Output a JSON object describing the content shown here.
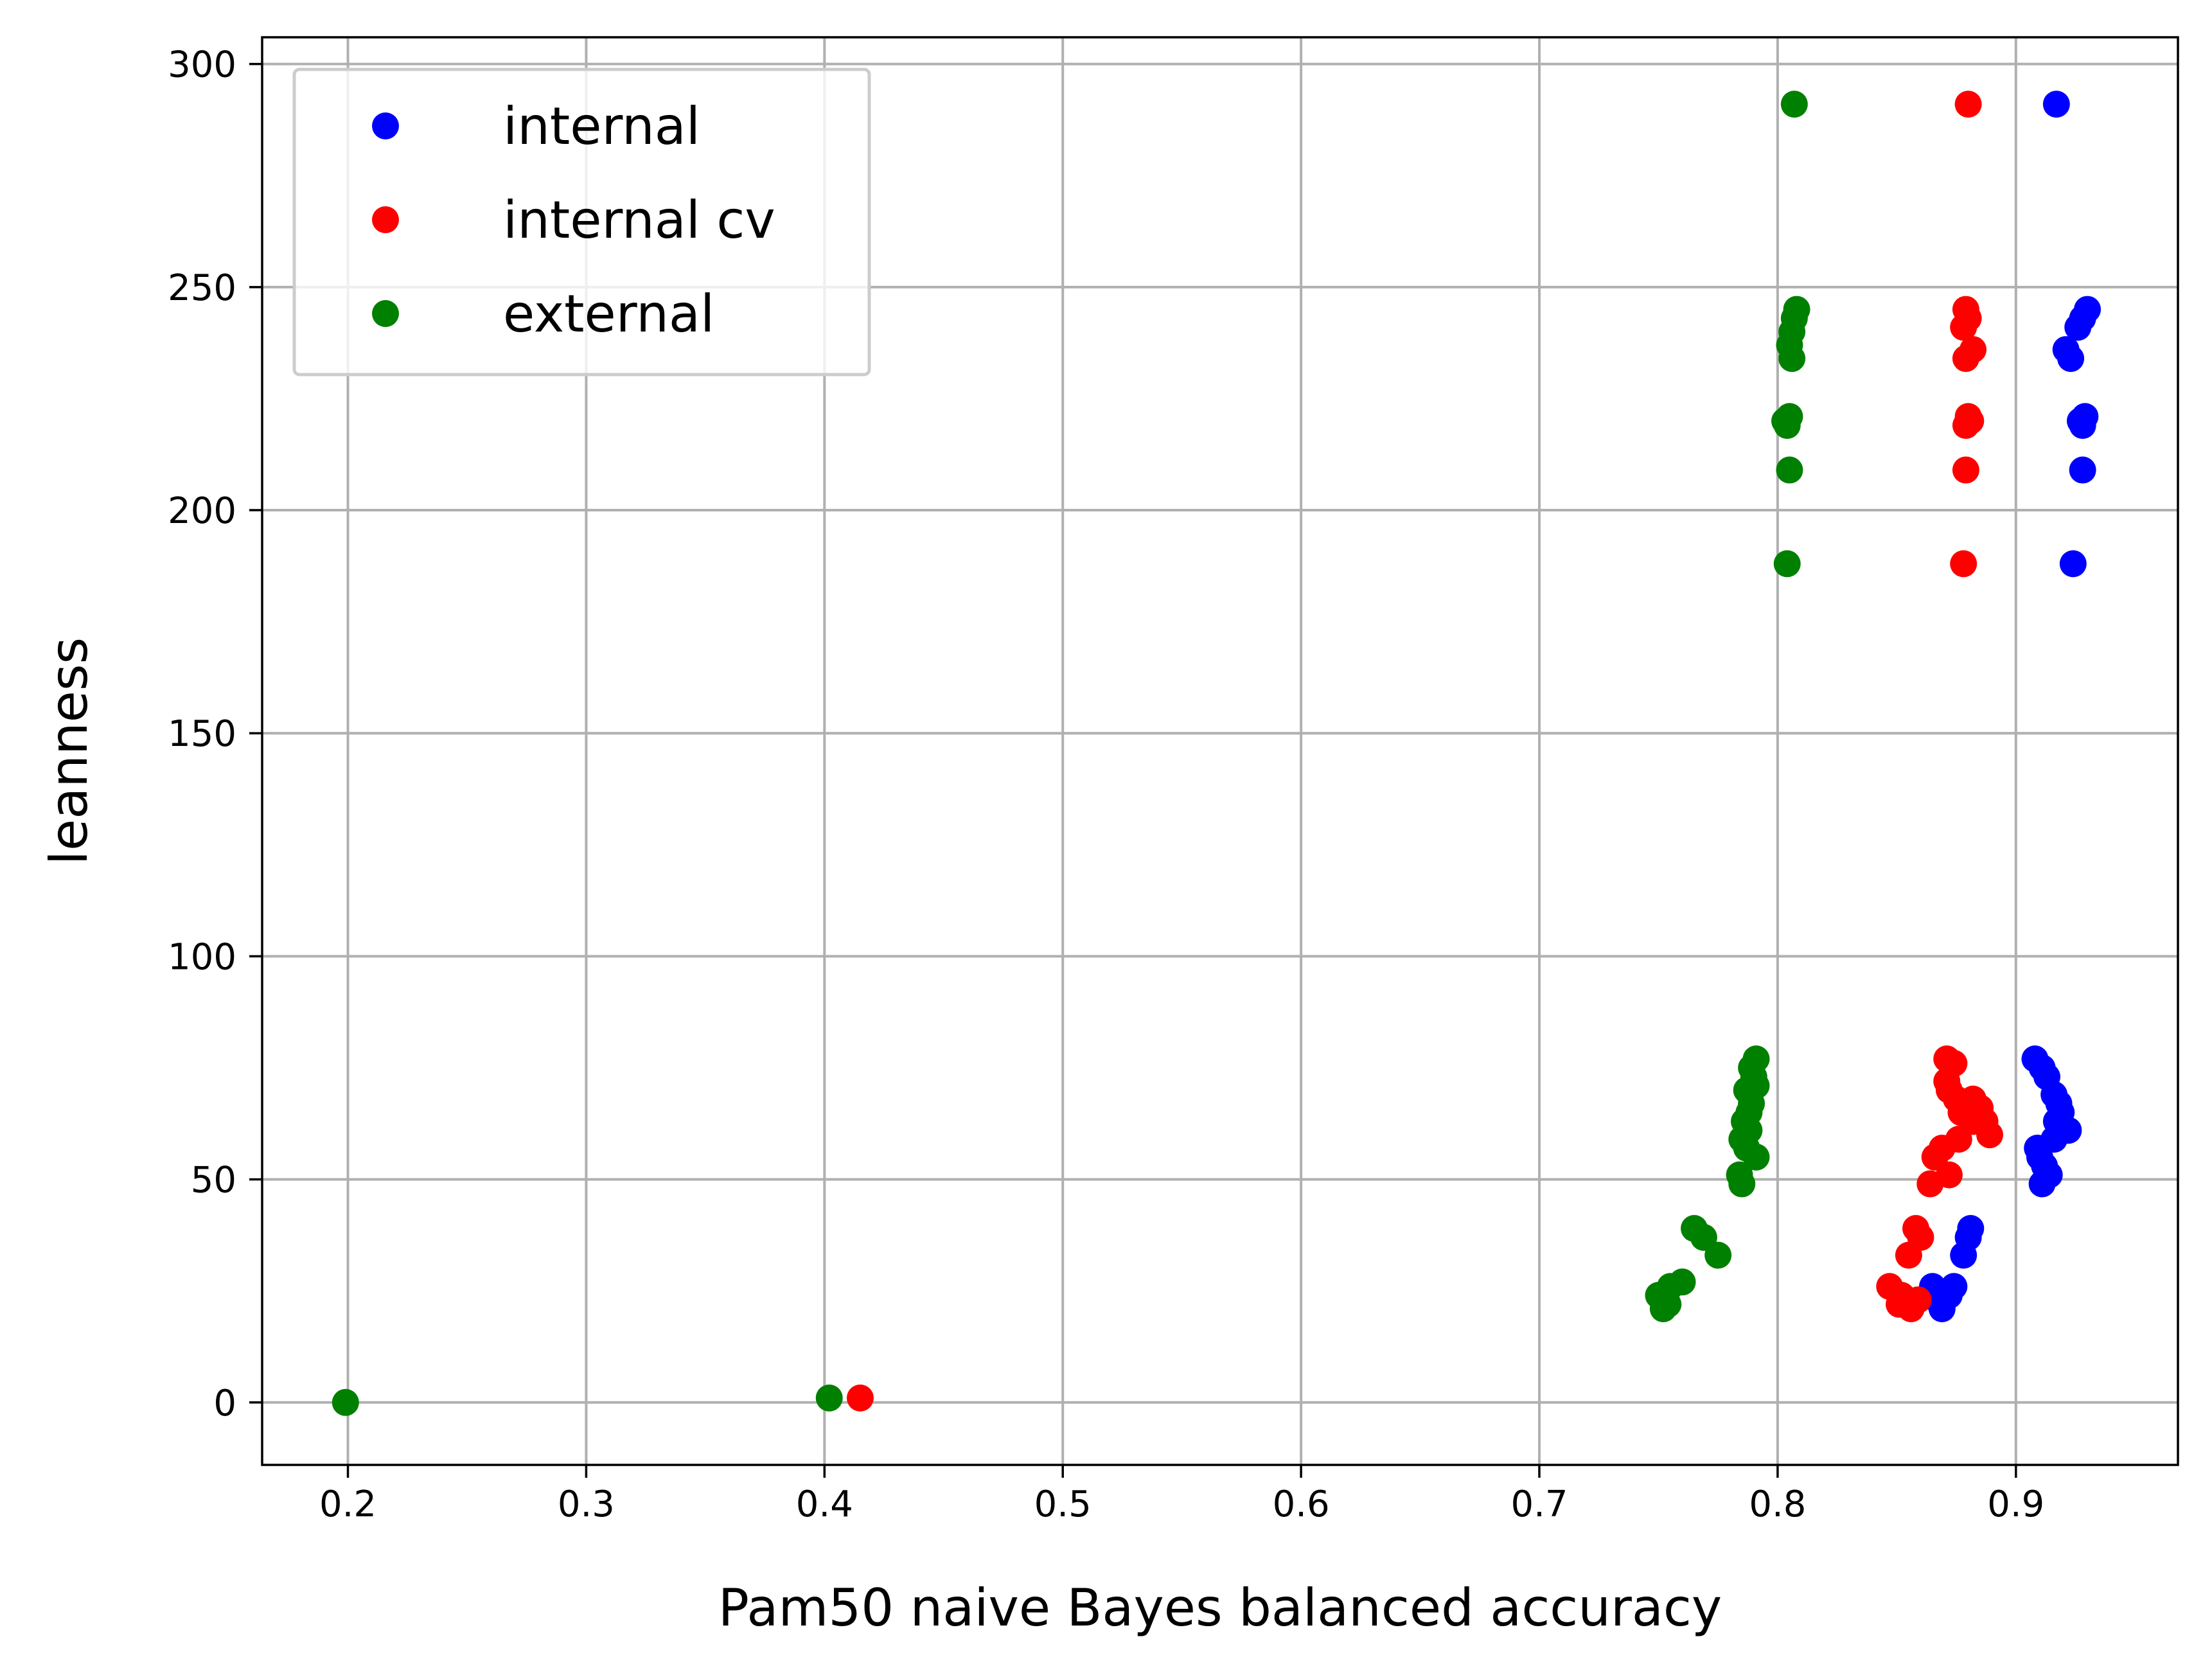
{
  "chart_data": {
    "type": "scatter",
    "title": "",
    "xlabel": "Pam50 naive Bayes balanced accuracy",
    "ylabel": "leanness",
    "xlim": [
      0.164,
      0.968
    ],
    "ylim": [
      -14,
      306
    ],
    "xticks": [
      0.2,
      0.3,
      0.4,
      0.5,
      0.6,
      0.7,
      0.8,
      0.9
    ],
    "xtick_labels": [
      "0.2",
      "0.3",
      "0.4",
      "0.5",
      "0.6",
      "0.7",
      "0.8",
      "0.9"
    ],
    "yticks": [
      0,
      50,
      100,
      150,
      200,
      250,
      300
    ],
    "ytick_labels": [
      "0",
      "50",
      "100",
      "150",
      "200",
      "250",
      "300"
    ],
    "grid": true,
    "legend_position": "top-left",
    "series": [
      {
        "name": "internal",
        "color": "#0000ff",
        "points": [
          [
            0.917,
            291
          ],
          [
            0.93,
            245
          ],
          [
            0.928,
            243
          ],
          [
            0.926,
            241
          ],
          [
            0.921,
            236
          ],
          [
            0.923,
            234
          ],
          [
            0.929,
            221
          ],
          [
            0.927,
            220
          ],
          [
            0.928,
            219
          ],
          [
            0.928,
            209
          ],
          [
            0.924,
            188
          ],
          [
            0.908,
            77
          ],
          [
            0.911,
            75
          ],
          [
            0.913,
            73
          ],
          [
            0.916,
            69
          ],
          [
            0.918,
            67
          ],
          [
            0.919,
            65
          ],
          [
            0.917,
            63
          ],
          [
            0.922,
            61
          ],
          [
            0.916,
            59
          ],
          [
            0.909,
            57
          ],
          [
            0.91,
            55
          ],
          [
            0.912,
            53
          ],
          [
            0.914,
            51
          ],
          [
            0.911,
            49
          ],
          [
            0.881,
            39
          ],
          [
            0.88,
            37
          ],
          [
            0.878,
            33
          ],
          [
            0.874,
            26
          ],
          [
            0.872,
            24
          ],
          [
            0.865,
            26
          ],
          [
            0.867,
            23
          ],
          [
            0.869,
            21
          ]
        ]
      },
      {
        "name": "internal cv",
        "color": "#ff0000",
        "points": [
          [
            0.88,
            291
          ],
          [
            0.879,
            245
          ],
          [
            0.88,
            243
          ],
          [
            0.878,
            241
          ],
          [
            0.882,
            236
          ],
          [
            0.879,
            234
          ],
          [
            0.88,
            221
          ],
          [
            0.881,
            220
          ],
          [
            0.879,
            219
          ],
          [
            0.879,
            209
          ],
          [
            0.878,
            188
          ],
          [
            0.871,
            77
          ],
          [
            0.874,
            76
          ],
          [
            0.871,
            72
          ],
          [
            0.872,
            70
          ],
          [
            0.875,
            68
          ],
          [
            0.882,
            68
          ],
          [
            0.885,
            66
          ],
          [
            0.877,
            65
          ],
          [
            0.882,
            63
          ],
          [
            0.887,
            63
          ],
          [
            0.889,
            60
          ],
          [
            0.876,
            59
          ],
          [
            0.869,
            57
          ],
          [
            0.866,
            55
          ],
          [
            0.872,
            51
          ],
          [
            0.864,
            49
          ],
          [
            0.858,
            39
          ],
          [
            0.86,
            37
          ],
          [
            0.855,
            33
          ],
          [
            0.847,
            26
          ],
          [
            0.852,
            24
          ],
          [
            0.855,
            22
          ],
          [
            0.859,
            23
          ],
          [
            0.851,
            22
          ],
          [
            0.856,
            21
          ],
          [
            0.415,
            1
          ]
        ]
      },
      {
        "name": "external",
        "color": "#008000",
        "points": [
          [
            0.807,
            291
          ],
          [
            0.808,
            245
          ],
          [
            0.807,
            243
          ],
          [
            0.806,
            240
          ],
          [
            0.805,
            237
          ],
          [
            0.806,
            234
          ],
          [
            0.805,
            221
          ],
          [
            0.803,
            220
          ],
          [
            0.804,
            219
          ],
          [
            0.805,
            209
          ],
          [
            0.804,
            188
          ],
          [
            0.791,
            77
          ],
          [
            0.789,
            75
          ],
          [
            0.79,
            73
          ],
          [
            0.791,
            71
          ],
          [
            0.787,
            70
          ],
          [
            0.789,
            67
          ],
          [
            0.788,
            65
          ],
          [
            0.786,
            63
          ],
          [
            0.788,
            61
          ],
          [
            0.785,
            59
          ],
          [
            0.787,
            57
          ],
          [
            0.791,
            55
          ],
          [
            0.784,
            51
          ],
          [
            0.785,
            49
          ],
          [
            0.765,
            39
          ],
          [
            0.769,
            37
          ],
          [
            0.775,
            33
          ],
          [
            0.76,
            27
          ],
          [
            0.755,
            26
          ],
          [
            0.752,
            24
          ],
          [
            0.75,
            24
          ],
          [
            0.754,
            22
          ],
          [
            0.752,
            21
          ],
          [
            0.402,
            1
          ],
          [
            0.199,
            0
          ]
        ]
      }
    ]
  }
}
